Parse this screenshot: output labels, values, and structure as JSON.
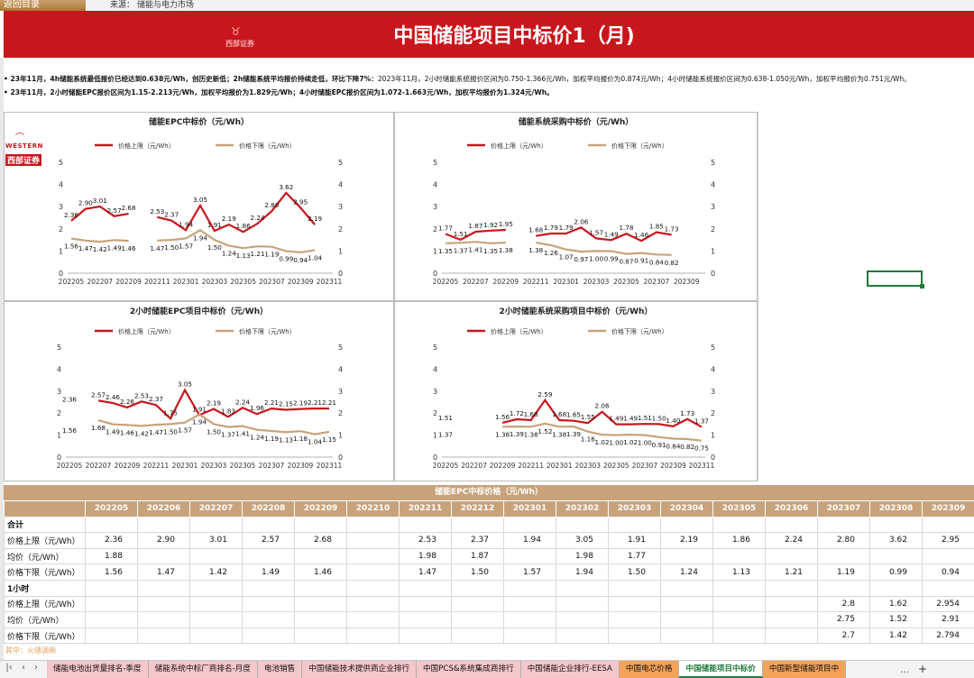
{
  "topbar": {
    "back": "返回目录",
    "source_label": "来源：",
    "source_value": "储能与电力市场"
  },
  "banner": {
    "title": "中国储能项目中标价1（月)",
    "logo": "西部证券"
  },
  "summary": {
    "line1_bold": "• 23年11月，4h储能系统最低报价已经达到0.638元/Wh，创历史新低；2h储能系统平均报价持续走低，环比下降7%：",
    "line1_rest": "2023年11月，2小时储能系统报价区间为0.750-1.366元/Wh，加权平均报价为0.874元/Wh；4小时储能系统报价区间为0.638-1.050元/Wh，加权平均报价为0.751元/Wh。",
    "line2_bold": "• 23年11月，2小时储能EPC报价区间为1.15-2.213元/Wh，加权平均报价为1.829元/Wh；4小时储能EPC报价区间为1.072-1.663元/Wh，加权平均报价为1.324元/Wh。"
  },
  "logo": {
    "western": "WESTERN",
    "cn": "西部证券"
  },
  "legend": {
    "upper": "价格上限（元/Wh）",
    "lower": "价格下限（元/Wh）"
  },
  "colors": {
    "upper": "#c8161d",
    "lower": "#c8a27a",
    "banner": "#c8161d",
    "header": "#c8a27a"
  },
  "chart_data": [
    {
      "type": "line",
      "title": "储能EPC中标价（元/Wh）",
      "x": [
        "202205",
        "202206",
        "202207",
        "202208",
        "202209",
        "202210",
        "202211",
        "202212",
        "202301",
        "202302",
        "202303",
        "202304",
        "202305",
        "202306",
        "202307",
        "202308",
        "202309",
        "202310",
        "202311"
      ],
      "xticks": [
        "202205",
        "202207",
        "202209",
        "202211",
        "202301",
        "202303",
        "202305",
        "202307",
        "202309",
        "202311"
      ],
      "ylim": [
        0,
        5
      ],
      "series": [
        {
          "name": "价格上限（元/Wh）",
          "values": [
            2.36,
            2.9,
            3.01,
            2.57,
            2.68,
            null,
            2.53,
            2.37,
            1.94,
            3.05,
            1.91,
            2.19,
            1.86,
            2.24,
            2.8,
            3.62,
            2.95,
            2.19,
            null
          ]
        },
        {
          "name": "价格下限（元/Wh）",
          "values": [
            1.56,
            1.47,
            1.42,
            1.49,
            1.46,
            null,
            1.47,
            1.5,
            1.57,
            1.94,
            1.5,
            1.24,
            1.13,
            1.21,
            1.19,
            0.99,
            0.94,
            1.04,
            null
          ]
        }
      ]
    },
    {
      "type": "line",
      "title": "储能系统采购中标价（元/Wh）",
      "x": [
        "202205",
        "202206",
        "202207",
        "202208",
        "202209",
        "202210",
        "202211",
        "202212",
        "202301",
        "202302",
        "202303",
        "202304",
        "202305",
        "202306",
        "202307",
        "202308",
        "202309",
        "202310"
      ],
      "xticks": [
        "202205",
        "202207",
        "202209",
        "202211",
        "202301",
        "202303",
        "202305",
        "202307",
        "202309"
      ],
      "ylim": [
        0,
        5
      ],
      "series": [
        {
          "name": "价格上限（元/Wh）",
          "values": [
            1.77,
            1.51,
            1.87,
            1.92,
            1.95,
            null,
            1.68,
            1.79,
            1.79,
            2.06,
            1.57,
            1.49,
            1.78,
            1.46,
            1.85,
            1.73,
            null,
            null
          ]
        },
        {
          "name": "价格下限（元/Wh）",
          "values": [
            1.35,
            1.37,
            1.41,
            1.35,
            1.38,
            null,
            1.38,
            1.26,
            1.07,
            0.97,
            1.0,
            0.99,
            0.87,
            0.91,
            0.84,
            0.82,
            null,
            null
          ]
        }
      ]
    },
    {
      "type": "line",
      "title": "2小时储能EPC项目中标价（元/Wh）",
      "x": [
        "202205",
        "202206",
        "202207",
        "202208",
        "202209",
        "202210",
        "202211",
        "202212",
        "202301",
        "202302",
        "202303",
        "202304",
        "202305",
        "202306",
        "202307",
        "202308",
        "202309",
        "202310",
        "202311"
      ],
      "xticks": [
        "202205",
        "202207",
        "202209",
        "202211",
        "202301",
        "202303",
        "202305",
        "202307",
        "202309",
        "202311"
      ],
      "ylim": [
        0,
        5
      ],
      "series": [
        {
          "name": "价格上限（元/Wh）",
          "values": [
            2.36,
            null,
            2.57,
            2.46,
            2.26,
            2.53,
            2.37,
            1.75,
            3.05,
            1.91,
            2.19,
            1.83,
            2.24,
            1.96,
            2.21,
            2.15,
            2.19,
            2.21,
            2.21
          ]
        },
        {
          "name": "价格下限（元/Wh）",
          "values": [
            1.56,
            null,
            1.68,
            1.49,
            1.46,
            1.42,
            1.47,
            1.5,
            1.57,
            1.94,
            1.5,
            1.37,
            1.41,
            1.24,
            1.19,
            1.13,
            1.18,
            1.04,
            1.15
          ]
        }
      ]
    },
    {
      "type": "line",
      "title": "2小时储能系统采购项目中标价（元/Wh）",
      "x": [
        "202205",
        "202206",
        "202207",
        "202208",
        "202209",
        "202210",
        "202211",
        "202212",
        "202301",
        "202302",
        "202303",
        "202304",
        "202305",
        "202306",
        "202307",
        "202308",
        "202309",
        "202310",
        "202311"
      ],
      "xticks": [
        "202205",
        "202207",
        "202209",
        "202211",
        "202301",
        "202303",
        "202305",
        "202307",
        "202309",
        "202311"
      ],
      "ylim": [
        0,
        5
      ],
      "series": [
        {
          "name": "价格上限（元/Wh）",
          "values": [
            1.51,
            null,
            null,
            null,
            1.56,
            1.72,
            1.68,
            2.59,
            1.68,
            1.65,
            1.55,
            2.06,
            1.49,
            1.49,
            1.51,
            1.5,
            1.4,
            1.73,
            1.37
          ]
        },
        {
          "name": "价格下限（元/Wh）",
          "values": [
            1.37,
            null,
            null,
            null,
            1.38,
            1.39,
            1.38,
            1.52,
            1.38,
            1.39,
            1.16,
            1.02,
            1.0,
            1.02,
            1.0,
            0.91,
            0.84,
            0.82,
            0.75
          ]
        }
      ]
    }
  ],
  "table": {
    "title": "储能EPC中标价格（元/Wh）",
    "months": [
      "202205",
      "202206",
      "202207",
      "202208",
      "202209",
      "202210",
      "202211",
      "202212",
      "202301",
      "202302",
      "202303",
      "202304",
      "202305",
      "202306",
      "202307",
      "202308",
      "202309"
    ],
    "rows": [
      {
        "label": "合计",
        "group": true,
        "values": [
          "",
          "",
          "",
          "",
          "",
          "",
          "",
          "",
          "",
          "",
          "",
          "",
          "",
          "",
          "",
          "",
          ""
        ]
      },
      {
        "label": "价格上限（元/Wh）",
        "values": [
          "2.36",
          "2.90",
          "3.01",
          "2.57",
          "2.68",
          "",
          "2.53",
          "2.37",
          "1.94",
          "3.05",
          "1.91",
          "2.19",
          "1.86",
          "2.24",
          "2.80",
          "3.62",
          "2.95"
        ]
      },
      {
        "label": "均价（元/Wh）",
        "values": [
          "1.88",
          "",
          "",
          "",
          "",
          "",
          "1.98",
          "1.87",
          "",
          "1.98",
          "1.77",
          "",
          "",
          "",
          "",
          "",
          ""
        ]
      },
      {
        "label": "价格下限（元/Wh）",
        "values": [
          "1.56",
          "1.47",
          "1.42",
          "1.49",
          "1.46",
          "",
          "1.47",
          "1.50",
          "1.57",
          "1.94",
          "1.50",
          "1.24",
          "1.13",
          "1.21",
          "1.19",
          "0.99",
          "0.94"
        ]
      },
      {
        "label": "1小时",
        "group": true,
        "values": [
          "",
          "",
          "",
          "",
          "",
          "",
          "",
          "",
          "",
          "",
          "",
          "",
          "",
          "",
          "",
          "",
          ""
        ]
      },
      {
        "label": "价格上限（元/Wh）",
        "values": [
          "",
          "",
          "",
          "",
          "",
          "",
          "",
          "",
          "",
          "",
          "",
          "",
          "",
          "",
          "2.8",
          "1.62",
          "2.954"
        ]
      },
      {
        "label": "均价（元/Wh）",
        "values": [
          "",
          "",
          "",
          "",
          "",
          "",
          "",
          "",
          "",
          "",
          "",
          "",
          "",
          "",
          "2.75",
          "1.52",
          "2.91"
        ]
      },
      {
        "label": "价格下限（元/Wh）",
        "values": [
          "",
          "",
          "",
          "",
          "",
          "",
          "",
          "",
          "",
          "",
          "",
          "",
          "",
          "",
          "2.7",
          "1.42",
          "2.794"
        ]
      }
    ],
    "note": "其中：火储调频"
  },
  "tabs": [
    {
      "label": "储能电池出货量排名-季度",
      "style": "pink"
    },
    {
      "label": "储能系统中标厂商排名-月度",
      "style": "pink"
    },
    {
      "label": "电池销售",
      "style": "pink"
    },
    {
      "label": "中国储能技术提供商企业排行",
      "style": "pink"
    },
    {
      "label": "中国PCS&系统集成商排行",
      "style": "pink"
    },
    {
      "label": "中国储能企业排行-EESA",
      "style": "pink"
    },
    {
      "label": "中国电芯价格",
      "style": "orange"
    },
    {
      "label": "中国储能项目中标价",
      "style": "active"
    },
    {
      "label": "中国新型储能项目中",
      "style": "orange"
    }
  ],
  "tabbar": {
    "more": "...",
    "add": "+"
  }
}
